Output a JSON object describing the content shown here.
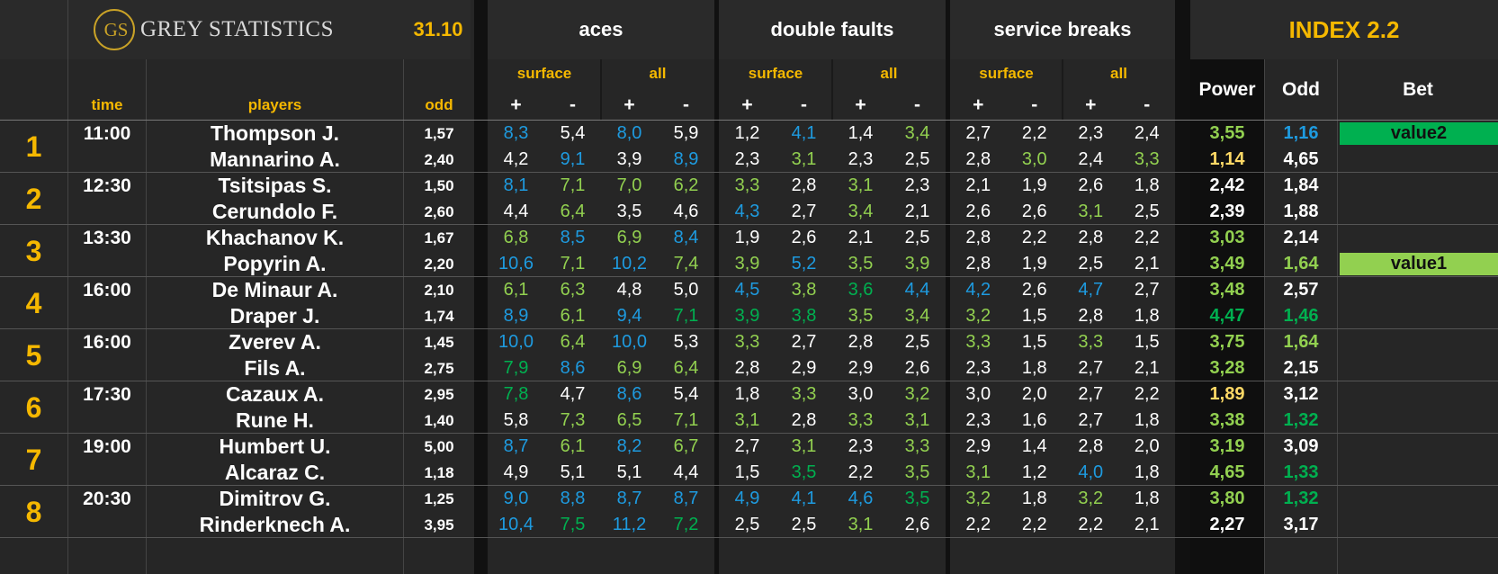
{
  "header": {
    "logo_monogram": "GS",
    "logo_text": "GREY STATISTICS",
    "date": "31.10",
    "groups": [
      "aces",
      "double faults",
      "service breaks"
    ],
    "index_title": "INDEX 2.2",
    "sub_surface": "surface",
    "sub_all": "all",
    "plus": "+",
    "minus": "-",
    "col_time": "time",
    "col_players": "players",
    "col_odd": "odd",
    "col_power": "Power",
    "col_odd2": "Odd",
    "col_bet": "Bet"
  },
  "colors": {
    "blue": "#1e9be0",
    "lightgreen": "#92d050",
    "green": "#00b050",
    "yellow": "#f5b800",
    "paleyellow": "#ffd966",
    "white": "#ffffff"
  },
  "matches": [
    {
      "num": "1",
      "time": "11:00",
      "bet": "value2",
      "bet_row": 0,
      "bet_color": "green",
      "players": [
        {
          "name": "Thompson J.",
          "odd": "1,57",
          "stats": [
            [
              "8,3",
              "b"
            ],
            [
              "5,4",
              "w"
            ],
            [
              "8,0",
              "b"
            ],
            [
              "5,9",
              "w"
            ],
            [
              "1,2",
              "w"
            ],
            [
              "4,1",
              "b"
            ],
            [
              "1,4",
              "w"
            ],
            [
              "3,4",
              "lg"
            ],
            [
              "2,7",
              "w"
            ],
            [
              "2,2",
              "w"
            ],
            [
              "2,3",
              "w"
            ],
            [
              "2,4",
              "w"
            ]
          ],
          "power": [
            "3,55",
            "lg"
          ],
          "odd2": [
            "1,16",
            "b"
          ]
        },
        {
          "name": "Mannarino A.",
          "odd": "2,40",
          "stats": [
            [
              "4,2",
              "w"
            ],
            [
              "9,1",
              "b"
            ],
            [
              "3,9",
              "w"
            ],
            [
              "8,9",
              "b"
            ],
            [
              "2,3",
              "w"
            ],
            [
              "3,1",
              "lg"
            ],
            [
              "2,3",
              "w"
            ],
            [
              "2,5",
              "w"
            ],
            [
              "2,8",
              "w"
            ],
            [
              "3,0",
              "lg"
            ],
            [
              "2,4",
              "w"
            ],
            [
              "3,3",
              "lg"
            ]
          ],
          "power": [
            "1,14",
            "py"
          ],
          "odd2": [
            "4,65",
            "w"
          ]
        }
      ]
    },
    {
      "num": "2",
      "time": "12:30",
      "bet": "",
      "bet_row": 0,
      "bet_color": "",
      "players": [
        {
          "name": "Tsitsipas S.",
          "odd": "1,50",
          "stats": [
            [
              "8,1",
              "b"
            ],
            [
              "7,1",
              "lg"
            ],
            [
              "7,0",
              "lg"
            ],
            [
              "6,2",
              "lg"
            ],
            [
              "3,3",
              "lg"
            ],
            [
              "2,8",
              "w"
            ],
            [
              "3,1",
              "lg"
            ],
            [
              "2,3",
              "w"
            ],
            [
              "2,1",
              "w"
            ],
            [
              "1,9",
              "w"
            ],
            [
              "2,6",
              "w"
            ],
            [
              "1,8",
              "w"
            ]
          ],
          "power": [
            "2,42",
            "w"
          ],
          "odd2": [
            "1,84",
            "w"
          ]
        },
        {
          "name": "Cerundolo F.",
          "odd": "2,60",
          "stats": [
            [
              "4,4",
              "w"
            ],
            [
              "6,4",
              "lg"
            ],
            [
              "3,5",
              "w"
            ],
            [
              "4,6",
              "w"
            ],
            [
              "4,3",
              "b"
            ],
            [
              "2,7",
              "w"
            ],
            [
              "3,4",
              "lg"
            ],
            [
              "2,1",
              "w"
            ],
            [
              "2,6",
              "w"
            ],
            [
              "2,6",
              "w"
            ],
            [
              "3,1",
              "lg"
            ],
            [
              "2,5",
              "w"
            ]
          ],
          "power": [
            "2,39",
            "w"
          ],
          "odd2": [
            "1,88",
            "w"
          ]
        }
      ]
    },
    {
      "num": "3",
      "time": "13:30",
      "bet": "value1",
      "bet_row": 1,
      "bet_color": "lightgreen",
      "players": [
        {
          "name": "Khachanov K.",
          "odd": "1,67",
          "stats": [
            [
              "6,8",
              "lg"
            ],
            [
              "8,5",
              "b"
            ],
            [
              "6,9",
              "lg"
            ],
            [
              "8,4",
              "b"
            ],
            [
              "1,9",
              "w"
            ],
            [
              "2,6",
              "w"
            ],
            [
              "2,1",
              "w"
            ],
            [
              "2,5",
              "w"
            ],
            [
              "2,8",
              "w"
            ],
            [
              "2,2",
              "w"
            ],
            [
              "2,8",
              "w"
            ],
            [
              "2,2",
              "w"
            ]
          ],
          "power": [
            "3,03",
            "lg"
          ],
          "odd2": [
            "2,14",
            "w"
          ]
        },
        {
          "name": "Popyrin A.",
          "odd": "2,20",
          "stats": [
            [
              "10,6",
              "b"
            ],
            [
              "7,1",
              "lg"
            ],
            [
              "10,2",
              "b"
            ],
            [
              "7,4",
              "lg"
            ],
            [
              "3,9",
              "lg"
            ],
            [
              "5,2",
              "b"
            ],
            [
              "3,5",
              "lg"
            ],
            [
              "3,9",
              "lg"
            ],
            [
              "2,8",
              "w"
            ],
            [
              "1,9",
              "w"
            ],
            [
              "2,5",
              "w"
            ],
            [
              "2,1",
              "w"
            ]
          ],
          "power": [
            "3,49",
            "lg"
          ],
          "odd2": [
            "1,64",
            "lg"
          ]
        }
      ]
    },
    {
      "num": "4",
      "time": "16:00",
      "bet": "",
      "bet_row": 0,
      "bet_color": "",
      "players": [
        {
          "name": "De Minaur A.",
          "odd": "2,10",
          "stats": [
            [
              "6,1",
              "lg"
            ],
            [
              "6,3",
              "lg"
            ],
            [
              "4,8",
              "w"
            ],
            [
              "5,0",
              "w"
            ],
            [
              "4,5",
              "b"
            ],
            [
              "3,8",
              "lg"
            ],
            [
              "3,6",
              "g"
            ],
            [
              "4,4",
              "b"
            ],
            [
              "4,2",
              "b"
            ],
            [
              "2,6",
              "w"
            ],
            [
              "4,7",
              "b"
            ],
            [
              "2,7",
              "w"
            ]
          ],
          "power": [
            "3,48",
            "lg"
          ],
          "odd2": [
            "2,57",
            "w"
          ]
        },
        {
          "name": "Draper J.",
          "odd": "1,74",
          "stats": [
            [
              "8,9",
              "b"
            ],
            [
              "6,1",
              "lg"
            ],
            [
              "9,4",
              "b"
            ],
            [
              "7,1",
              "g"
            ],
            [
              "3,9",
              "g"
            ],
            [
              "3,8",
              "g"
            ],
            [
              "3,5",
              "lg"
            ],
            [
              "3,4",
              "lg"
            ],
            [
              "3,2",
              "lg"
            ],
            [
              "1,5",
              "w"
            ],
            [
              "2,8",
              "w"
            ],
            [
              "1,8",
              "w"
            ]
          ],
          "power": [
            "4,47",
            "g"
          ],
          "odd2": [
            "1,46",
            "g"
          ]
        }
      ]
    },
    {
      "num": "5",
      "time": "16:00",
      "bet": "",
      "bet_row": 0,
      "bet_color": "",
      "players": [
        {
          "name": "Zverev A.",
          "odd": "1,45",
          "stats": [
            [
              "10,0",
              "b"
            ],
            [
              "6,4",
              "lg"
            ],
            [
              "10,0",
              "b"
            ],
            [
              "5,3",
              "w"
            ],
            [
              "3,3",
              "lg"
            ],
            [
              "2,7",
              "w"
            ],
            [
              "2,8",
              "w"
            ],
            [
              "2,5",
              "w"
            ],
            [
              "3,3",
              "lg"
            ],
            [
              "1,5",
              "w"
            ],
            [
              "3,3",
              "lg"
            ],
            [
              "1,5",
              "w"
            ]
          ],
          "power": [
            "3,75",
            "lg"
          ],
          "odd2": [
            "1,64",
            "lg"
          ]
        },
        {
          "name": "Fils A.",
          "odd": "2,75",
          "stats": [
            [
              "7,9",
              "g"
            ],
            [
              "8,6",
              "b"
            ],
            [
              "6,9",
              "lg"
            ],
            [
              "6,4",
              "lg"
            ],
            [
              "2,8",
              "w"
            ],
            [
              "2,9",
              "w"
            ],
            [
              "2,9",
              "w"
            ],
            [
              "2,6",
              "w"
            ],
            [
              "2,3",
              "w"
            ],
            [
              "1,8",
              "w"
            ],
            [
              "2,7",
              "w"
            ],
            [
              "2,1",
              "w"
            ]
          ],
          "power": [
            "3,28",
            "lg"
          ],
          "odd2": [
            "2,15",
            "w"
          ]
        }
      ]
    },
    {
      "num": "6",
      "time": "17:30",
      "bet": "",
      "bet_row": 0,
      "bet_color": "",
      "players": [
        {
          "name": "Cazaux A.",
          "odd": "2,95",
          "stats": [
            [
              "7,8",
              "g"
            ],
            [
              "4,7",
              "w"
            ],
            [
              "8,6",
              "b"
            ],
            [
              "5,4",
              "w"
            ],
            [
              "1,8",
              "w"
            ],
            [
              "3,3",
              "lg"
            ],
            [
              "3,0",
              "w"
            ],
            [
              "3,2",
              "lg"
            ],
            [
              "3,0",
              "w"
            ],
            [
              "2,0",
              "w"
            ],
            [
              "2,7",
              "w"
            ],
            [
              "2,2",
              "w"
            ]
          ],
          "power": [
            "1,89",
            "py"
          ],
          "odd2": [
            "3,12",
            "w"
          ]
        },
        {
          "name": "Rune H.",
          "odd": "1,40",
          "stats": [
            [
              "5,8",
              "w"
            ],
            [
              "7,3",
              "lg"
            ],
            [
              "6,5",
              "lg"
            ],
            [
              "7,1",
              "lg"
            ],
            [
              "3,1",
              "lg"
            ],
            [
              "2,8",
              "w"
            ],
            [
              "3,3",
              "lg"
            ],
            [
              "3,1",
              "lg"
            ],
            [
              "2,3",
              "w"
            ],
            [
              "1,6",
              "w"
            ],
            [
              "2,7",
              "w"
            ],
            [
              "1,8",
              "w"
            ]
          ],
          "power": [
            "3,38",
            "lg"
          ],
          "odd2": [
            "1,32",
            "g"
          ]
        }
      ]
    },
    {
      "num": "7",
      "time": "19:00",
      "bet": "",
      "bet_row": 0,
      "bet_color": "",
      "players": [
        {
          "name": "Humbert U.",
          "odd": "5,00",
          "stats": [
            [
              "8,7",
              "b"
            ],
            [
              "6,1",
              "lg"
            ],
            [
              "8,2",
              "b"
            ],
            [
              "6,7",
              "lg"
            ],
            [
              "2,7",
              "w"
            ],
            [
              "3,1",
              "lg"
            ],
            [
              "2,3",
              "w"
            ],
            [
              "3,3",
              "lg"
            ],
            [
              "2,9",
              "w"
            ],
            [
              "1,4",
              "w"
            ],
            [
              "2,8",
              "w"
            ],
            [
              "2,0",
              "w"
            ]
          ],
          "power": [
            "3,19",
            "lg"
          ],
          "odd2": [
            "3,09",
            "w"
          ]
        },
        {
          "name": "Alcaraz C.",
          "odd": "1,18",
          "stats": [
            [
              "4,9",
              "w"
            ],
            [
              "5,1",
              "w"
            ],
            [
              "5,1",
              "w"
            ],
            [
              "4,4",
              "w"
            ],
            [
              "1,5",
              "w"
            ],
            [
              "3,5",
              "g"
            ],
            [
              "2,2",
              "w"
            ],
            [
              "3,5",
              "lg"
            ],
            [
              "3,1",
              "lg"
            ],
            [
              "1,2",
              "w"
            ],
            [
              "4,0",
              "b"
            ],
            [
              "1,8",
              "w"
            ]
          ],
          "power": [
            "4,65",
            "lg"
          ],
          "odd2": [
            "1,33",
            "g"
          ]
        }
      ]
    },
    {
      "num": "8",
      "time": "20:30",
      "bet": "",
      "bet_row": 0,
      "bet_color": "",
      "players": [
        {
          "name": "Dimitrov G.",
          "odd": "1,25",
          "stats": [
            [
              "9,0",
              "b"
            ],
            [
              "8,8",
              "b"
            ],
            [
              "8,7",
              "b"
            ],
            [
              "8,7",
              "b"
            ],
            [
              "4,9",
              "b"
            ],
            [
              "4,1",
              "b"
            ],
            [
              "4,6",
              "b"
            ],
            [
              "3,5",
              "g"
            ],
            [
              "3,2",
              "lg"
            ],
            [
              "1,8",
              "w"
            ],
            [
              "3,2",
              "lg"
            ],
            [
              "1,8",
              "w"
            ]
          ],
          "power": [
            "3,80",
            "lg"
          ],
          "odd2": [
            "1,32",
            "g"
          ]
        },
        {
          "name": "Rinderknech A.",
          "odd": "3,95",
          "stats": [
            [
              "10,4",
              "b"
            ],
            [
              "7,5",
              "g"
            ],
            [
              "11,2",
              "b"
            ],
            [
              "7,2",
              "g"
            ],
            [
              "2,5",
              "w"
            ],
            [
              "2,5",
              "w"
            ],
            [
              "3,1",
              "lg"
            ],
            [
              "2,6",
              "w"
            ],
            [
              "2,2",
              "w"
            ],
            [
              "2,2",
              "w"
            ],
            [
              "2,2",
              "w"
            ],
            [
              "2,1",
              "w"
            ]
          ],
          "power": [
            "2,27",
            "w"
          ],
          "odd2": [
            "3,17",
            "w"
          ]
        }
      ]
    }
  ]
}
